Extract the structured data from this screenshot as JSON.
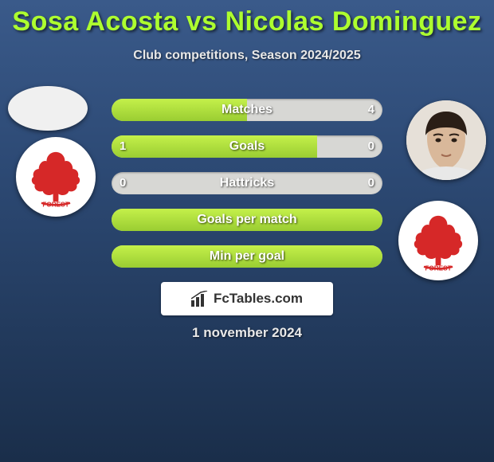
{
  "title": "Sosa Acosta vs Nicolas Dominguez",
  "subtitle": "Club competitions, Season 2024/2025",
  "date": "1 november 2024",
  "watermark": "FcTables.com",
  "colors": {
    "title": "#adff2f",
    "bar_fill_top": "#c4f04a",
    "bar_fill_bottom": "#9acd32",
    "bar_bg": "#d7d7d4",
    "bg_top": "#3a5a8a",
    "bg_bottom": "#1a2e4a",
    "club_red": "#d62828",
    "text_light": "#e8e8e8"
  },
  "stats": [
    {
      "label": "Matches",
      "left_val": "",
      "right_val": "4",
      "left_pct": 50,
      "right_pct": 50,
      "left_fill": true,
      "right_fill": false,
      "full": false
    },
    {
      "label": "Goals",
      "left_val": "1",
      "right_val": "0",
      "left_pct": 76,
      "right_pct": 0,
      "left_fill": true,
      "right_fill": false,
      "full": false
    },
    {
      "label": "Hattricks",
      "left_val": "0",
      "right_val": "0",
      "left_pct": 0,
      "right_pct": 0,
      "left_fill": false,
      "right_fill": false,
      "full": false
    },
    {
      "label": "Goals per match",
      "left_val": "",
      "right_val": "",
      "left_pct": 0,
      "right_pct": 0,
      "left_fill": false,
      "right_fill": false,
      "full": true
    },
    {
      "label": "Min per goal",
      "left_val": "",
      "right_val": "",
      "left_pct": 0,
      "right_pct": 0,
      "left_fill": false,
      "right_fill": false,
      "full": true
    }
  ],
  "club_name": "FOREST"
}
